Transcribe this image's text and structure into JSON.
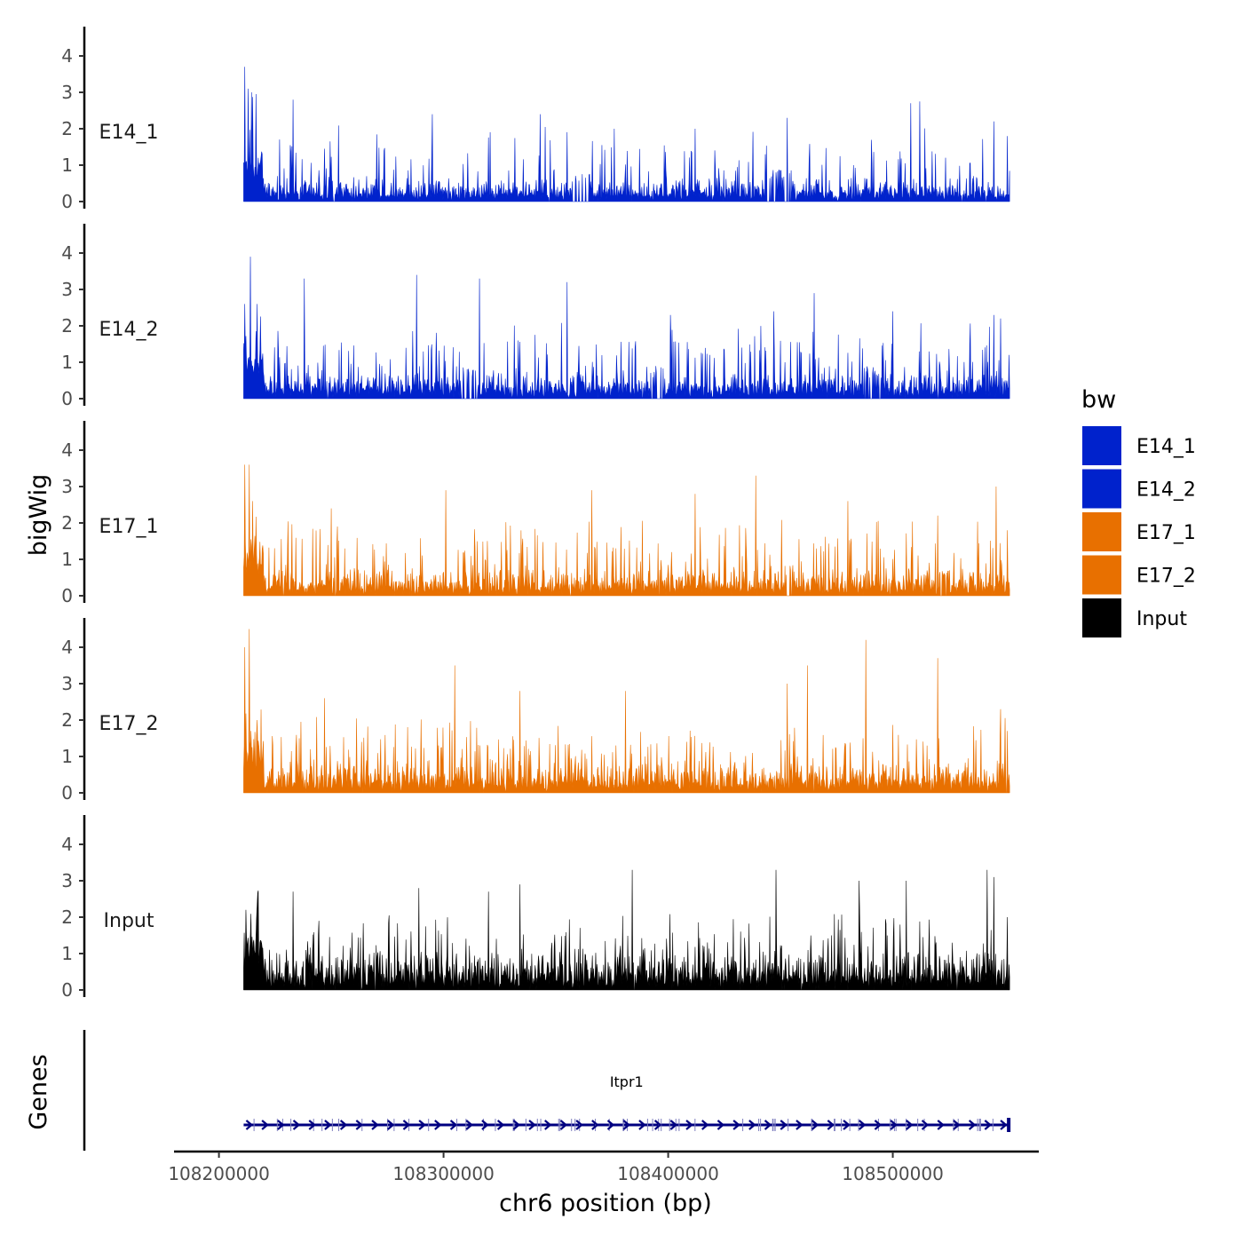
{
  "chart_data": {
    "type": "area",
    "chromosome": "chr6",
    "xlabel": "chr6 position (bp)",
    "ylabel": "bigWig",
    "genes_track_label": "Genes",
    "xlim": [
      108180000,
      108565000
    ],
    "data_range": [
      108211000,
      108552000
    ],
    "xticks": [
      108200000,
      108300000,
      108400000,
      108500000
    ],
    "xtick_labels": [
      "108200000",
      "108300000",
      "108400000",
      "108500000"
    ],
    "ylim": [
      0,
      4.8
    ],
    "yticks": [
      0,
      1,
      2,
      3,
      4
    ],
    "ytick_labels": [
      "0",
      "1",
      "2",
      "3",
      "4"
    ],
    "legend": {
      "title": "bw",
      "entries": [
        {
          "label": "E14_1",
          "color": "#0022CC"
        },
        {
          "label": "E14_2",
          "color": "#0022CC"
        },
        {
          "label": "E17_1",
          "color": "#E87000"
        },
        {
          "label": "E17_2",
          "color": "#E87000"
        },
        {
          "label": "Input",
          "color": "#000000"
        }
      ]
    },
    "series": [
      {
        "name": "E14_1",
        "color": "#0022CC",
        "baseline": 0.6,
        "peaks": [
          [
            108211500,
            3.7
          ],
          [
            108213000,
            3.1
          ],
          [
            108214500,
            3.0
          ],
          [
            108216500,
            2.95
          ],
          [
            108233000,
            2.8
          ],
          [
            108295000,
            2.4
          ],
          [
            108343000,
            2.4
          ],
          [
            108376000,
            2.0
          ],
          [
            108412000,
            2.0
          ],
          [
            108453000,
            2.3
          ],
          [
            108508000,
            2.7
          ],
          [
            108512000,
            2.75
          ],
          [
            108545000,
            2.2
          ],
          [
            108551000,
            1.8
          ]
        ],
        "gaps": [
          [
            108357000,
            108365000
          ],
          [
            108444000,
            108455000
          ]
        ]
      },
      {
        "name": "E14_2",
        "color": "#0022CC",
        "baseline": 0.7,
        "peaks": [
          [
            108211500,
            2.6
          ],
          [
            108214000,
            3.9
          ],
          [
            108217000,
            2.6
          ],
          [
            108238000,
            3.3
          ],
          [
            108288000,
            3.4
          ],
          [
            108316000,
            3.3
          ],
          [
            108355000,
            3.2
          ],
          [
            108401000,
            2.3
          ],
          [
            108447000,
            2.4
          ],
          [
            108465000,
            2.9
          ],
          [
            108500000,
            2.4
          ],
          [
            108545000,
            2.3
          ],
          [
            108548000,
            2.2
          ]
        ],
        "gaps": [
          [
            108308000,
            108315000
          ],
          [
            108392000,
            108398000
          ],
          [
            108487000,
            108495000
          ]
        ]
      },
      {
        "name": "E17_1",
        "color": "#E87000",
        "baseline": 0.7,
        "peaks": [
          [
            108211500,
            3.6
          ],
          [
            108213500,
            3.6
          ],
          [
            108215000,
            2.6
          ],
          [
            108250000,
            2.4
          ],
          [
            108301000,
            2.9
          ],
          [
            108366000,
            2.9
          ],
          [
            108412000,
            2.8
          ],
          [
            108439000,
            3.3
          ],
          [
            108480000,
            2.6
          ],
          [
            108520000,
            2.2
          ],
          [
            108546000,
            3.0
          ],
          [
            108551000,
            1.8
          ]
        ],
        "gaps": [
          [
            108452000,
            108456000
          ],
          [
            108521000,
            108524000
          ]
        ]
      },
      {
        "name": "E17_2",
        "color": "#E87000",
        "baseline": 0.8,
        "peaks": [
          [
            108211500,
            4.0
          ],
          [
            108213500,
            4.5
          ],
          [
            108217000,
            2.0
          ],
          [
            108247000,
            2.6
          ],
          [
            108305000,
            3.5
          ],
          [
            108334000,
            2.8
          ],
          [
            108381000,
            2.8
          ],
          [
            108453000,
            3.0
          ],
          [
            108462000,
            3.5
          ],
          [
            108488000,
            4.2
          ],
          [
            108520000,
            3.7
          ],
          [
            108548000,
            2.3
          ],
          [
            108551000,
            1.7
          ]
        ],
        "gaps": []
      },
      {
        "name": "Input",
        "color": "#000000",
        "baseline": 1.0,
        "peaks": [
          [
            108212000,
            2.2
          ],
          [
            108233000,
            2.7
          ],
          [
            108289000,
            2.8
          ],
          [
            108320000,
            2.7
          ],
          [
            108334000,
            2.9
          ],
          [
            108384000,
            3.3
          ],
          [
            108448000,
            3.3
          ],
          [
            108485000,
            3.0
          ],
          [
            108506000,
            3.0
          ],
          [
            108542000,
            3.3
          ],
          [
            108545000,
            3.1
          ],
          [
            108551000,
            2.0
          ]
        ],
        "gaps": []
      }
    ],
    "genes": [
      {
        "name": "Itpr1",
        "start": 108211000,
        "end": 108552000,
        "strand": "+",
        "color": "#000080"
      }
    ]
  }
}
